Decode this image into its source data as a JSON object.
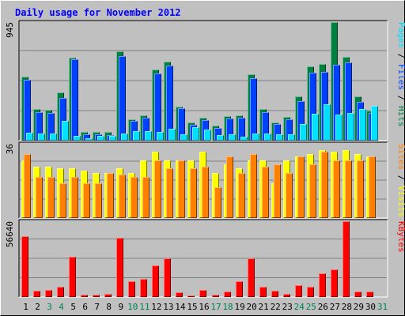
{
  "chart_data": {
    "type": "bar",
    "title": "Daily usage for November 2012",
    "categories": [
      "1",
      "2",
      "3",
      "4",
      "5",
      "6",
      "7",
      "8",
      "9",
      "10",
      "11",
      "12",
      "13",
      "14",
      "15",
      "16",
      "17",
      "18",
      "19",
      "20",
      "21",
      "22",
      "23",
      "24",
      "25",
      "26",
      "27",
      "28",
      "29",
      "30",
      "31"
    ],
    "weekend_days": [
      "3",
      "4",
      "10",
      "11",
      "17",
      "18",
      "24",
      "25",
      "31"
    ],
    "panels": [
      {
        "id": "hits-files-pages",
        "scale_label": "945",
        "ymax": 945,
        "right_label": [
          {
            "text": "Pages",
            "color": "#00e0ff"
          },
          {
            "text": " / ",
            "color": "#000000"
          },
          {
            "text": "Files",
            "color": "#0040ff"
          },
          {
            "text": " / ",
            "color": "#000000"
          },
          {
            "text": "Hits",
            "color": "#008040"
          }
        ],
        "series": [
          {
            "name": "Hits",
            "color": "#008040",
            "offset": 0,
            "values": [
              509,
              250,
              244,
              383,
              664,
              70,
              67,
              67,
              713,
              170,
              201,
              566,
              631,
              272,
              145,
              181,
              119,
              195,
              201,
              527,
              249,
              148,
              187,
              353,
              590,
              613,
              945,
              669,
              351,
              238,
              0
            ]
          },
          {
            "name": "Files",
            "color": "#0040ff",
            "offset": 1,
            "values": [
              486,
              228,
              219,
              339,
              647,
              50,
              52,
              45,
              675,
              160,
              180,
              536,
              601,
              257,
              128,
              161,
              102,
              175,
              183,
              499,
              226,
              134,
              169,
              315,
              539,
              545,
              606,
              626,
              310,
              221,
              0
            ]
          },
          {
            "name": "Pages",
            "color": "#00e0ff",
            "offset": 2,
            "values": [
              62,
              57,
              57,
              156,
              39,
              21,
              37,
              38,
              59,
              75,
              77,
              67,
              95,
              50,
              109,
              88,
              44,
              49,
              29,
              56,
              59,
              51,
              48,
              131,
              217,
              287,
              207,
              219,
              253,
              275,
              0
            ]
          }
        ]
      },
      {
        "id": "visits-sites",
        "scale_label": "36",
        "ymax": 36,
        "right_label": [
          {
            "text": "Sites",
            "color": "#ff8000"
          },
          {
            "text": " / ",
            "color": "#000000"
          },
          {
            "text": "Visits",
            "color": "#ffff00"
          }
        ],
        "series": [
          {
            "name": "Visits",
            "color": "#ffff00",
            "offset": 0,
            "values": [
              28,
              25,
              25,
              24,
              24,
              23,
              22,
              22,
              24,
              22,
              28,
              32,
              28,
              28,
              28,
              32,
              22,
              26,
              24,
              28,
              28,
              17,
              28,
              30,
              31,
              33,
              32,
              33,
              31,
              30,
              0
            ]
          },
          {
            "name": "Sites",
            "color": "#ff8000",
            "offset": 1,
            "values": [
              31,
              20,
              20,
              17,
              20,
              17,
              17,
              22,
              21,
              20,
              20,
              28,
              24,
              28,
              24,
              25,
              15,
              30,
              22,
              31,
              25,
              26,
              22,
              30,
              26,
              32,
              28,
              28,
              28,
              30,
              0
            ]
          }
        ]
      },
      {
        "id": "kbytes",
        "scale_label": "56640",
        "ymax": 56640,
        "right_label": [
          {
            "text": "KBytes",
            "color": "#ff0000"
          }
        ],
        "series": [
          {
            "name": "KBytes",
            "color": "#ff0000",
            "offset": 0,
            "values": [
              45620,
              5000,
              5400,
              7500,
              30200,
              1600,
              1600,
              2200,
              44200,
              11700,
              13500,
              23700,
              29100,
              3400,
              1400,
              5400,
              1900,
              4300,
              11700,
              29100,
              7500,
              4600,
              2500,
              9000,
              7500,
              17500,
              20900,
              56640,
              4300,
              4300,
              0
            ]
          }
        ]
      }
    ]
  }
}
